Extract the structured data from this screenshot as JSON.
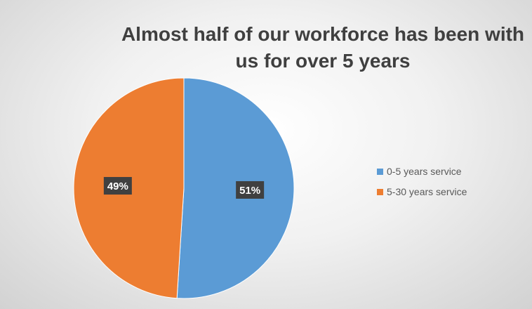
{
  "chart_data": {
    "type": "pie",
    "title_lines": [
      "Almost half of our workforce has been with",
      "us for over 5 years"
    ],
    "slices": [
      {
        "name": "0-5 years service",
        "value": 51,
        "label": "51%",
        "color": "#5b9bd5"
      },
      {
        "name": "5-30 years service",
        "value": 49,
        "label": "49%",
        "color": "#ed7d31"
      }
    ],
    "legend_position": "right",
    "data_label_background": "#404040"
  }
}
